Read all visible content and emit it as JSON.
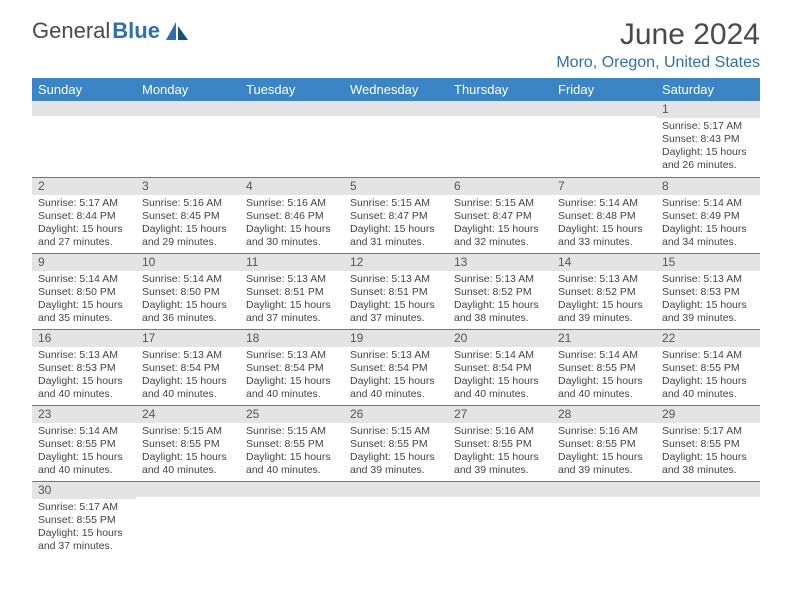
{
  "brand": {
    "part1": "General",
    "part2": "Blue"
  },
  "title": "June 2024",
  "location": "Moro, Oregon, United States",
  "colors": {
    "header_bg": "#3b85c6",
    "header_text": "#ffffff",
    "daybar_bg": "#e4e4e4",
    "cell_border": "#3b85c6",
    "brand_blue": "#2f6fb0",
    "title_color": "#4a4a4a"
  },
  "day_headers": [
    "Sunday",
    "Monday",
    "Tuesday",
    "Wednesday",
    "Thursday",
    "Friday",
    "Saturday"
  ],
  "weeks": [
    [
      {
        "n": "",
        "sr": "",
        "ss": "",
        "dl": ""
      },
      {
        "n": "",
        "sr": "",
        "ss": "",
        "dl": ""
      },
      {
        "n": "",
        "sr": "",
        "ss": "",
        "dl": ""
      },
      {
        "n": "",
        "sr": "",
        "ss": "",
        "dl": ""
      },
      {
        "n": "",
        "sr": "",
        "ss": "",
        "dl": ""
      },
      {
        "n": "",
        "sr": "",
        "ss": "",
        "dl": ""
      },
      {
        "n": "1",
        "sr": "Sunrise: 5:17 AM",
        "ss": "Sunset: 8:43 PM",
        "dl": "Daylight: 15 hours and 26 minutes."
      }
    ],
    [
      {
        "n": "2",
        "sr": "Sunrise: 5:17 AM",
        "ss": "Sunset: 8:44 PM",
        "dl": "Daylight: 15 hours and 27 minutes."
      },
      {
        "n": "3",
        "sr": "Sunrise: 5:16 AM",
        "ss": "Sunset: 8:45 PM",
        "dl": "Daylight: 15 hours and 29 minutes."
      },
      {
        "n": "4",
        "sr": "Sunrise: 5:16 AM",
        "ss": "Sunset: 8:46 PM",
        "dl": "Daylight: 15 hours and 30 minutes."
      },
      {
        "n": "5",
        "sr": "Sunrise: 5:15 AM",
        "ss": "Sunset: 8:47 PM",
        "dl": "Daylight: 15 hours and 31 minutes."
      },
      {
        "n": "6",
        "sr": "Sunrise: 5:15 AM",
        "ss": "Sunset: 8:47 PM",
        "dl": "Daylight: 15 hours and 32 minutes."
      },
      {
        "n": "7",
        "sr": "Sunrise: 5:14 AM",
        "ss": "Sunset: 8:48 PM",
        "dl": "Daylight: 15 hours and 33 minutes."
      },
      {
        "n": "8",
        "sr": "Sunrise: 5:14 AM",
        "ss": "Sunset: 8:49 PM",
        "dl": "Daylight: 15 hours and 34 minutes."
      }
    ],
    [
      {
        "n": "9",
        "sr": "Sunrise: 5:14 AM",
        "ss": "Sunset: 8:50 PM",
        "dl": "Daylight: 15 hours and 35 minutes."
      },
      {
        "n": "10",
        "sr": "Sunrise: 5:14 AM",
        "ss": "Sunset: 8:50 PM",
        "dl": "Daylight: 15 hours and 36 minutes."
      },
      {
        "n": "11",
        "sr": "Sunrise: 5:13 AM",
        "ss": "Sunset: 8:51 PM",
        "dl": "Daylight: 15 hours and 37 minutes."
      },
      {
        "n": "12",
        "sr": "Sunrise: 5:13 AM",
        "ss": "Sunset: 8:51 PM",
        "dl": "Daylight: 15 hours and 37 minutes."
      },
      {
        "n": "13",
        "sr": "Sunrise: 5:13 AM",
        "ss": "Sunset: 8:52 PM",
        "dl": "Daylight: 15 hours and 38 minutes."
      },
      {
        "n": "14",
        "sr": "Sunrise: 5:13 AM",
        "ss": "Sunset: 8:52 PM",
        "dl": "Daylight: 15 hours and 39 minutes."
      },
      {
        "n": "15",
        "sr": "Sunrise: 5:13 AM",
        "ss": "Sunset: 8:53 PM",
        "dl": "Daylight: 15 hours and 39 minutes."
      }
    ],
    [
      {
        "n": "16",
        "sr": "Sunrise: 5:13 AM",
        "ss": "Sunset: 8:53 PM",
        "dl": "Daylight: 15 hours and 40 minutes."
      },
      {
        "n": "17",
        "sr": "Sunrise: 5:13 AM",
        "ss": "Sunset: 8:54 PM",
        "dl": "Daylight: 15 hours and 40 minutes."
      },
      {
        "n": "18",
        "sr": "Sunrise: 5:13 AM",
        "ss": "Sunset: 8:54 PM",
        "dl": "Daylight: 15 hours and 40 minutes."
      },
      {
        "n": "19",
        "sr": "Sunrise: 5:13 AM",
        "ss": "Sunset: 8:54 PM",
        "dl": "Daylight: 15 hours and 40 minutes."
      },
      {
        "n": "20",
        "sr": "Sunrise: 5:14 AM",
        "ss": "Sunset: 8:54 PM",
        "dl": "Daylight: 15 hours and 40 minutes."
      },
      {
        "n": "21",
        "sr": "Sunrise: 5:14 AM",
        "ss": "Sunset: 8:55 PM",
        "dl": "Daylight: 15 hours and 40 minutes."
      },
      {
        "n": "22",
        "sr": "Sunrise: 5:14 AM",
        "ss": "Sunset: 8:55 PM",
        "dl": "Daylight: 15 hours and 40 minutes."
      }
    ],
    [
      {
        "n": "23",
        "sr": "Sunrise: 5:14 AM",
        "ss": "Sunset: 8:55 PM",
        "dl": "Daylight: 15 hours and 40 minutes."
      },
      {
        "n": "24",
        "sr": "Sunrise: 5:15 AM",
        "ss": "Sunset: 8:55 PM",
        "dl": "Daylight: 15 hours and 40 minutes."
      },
      {
        "n": "25",
        "sr": "Sunrise: 5:15 AM",
        "ss": "Sunset: 8:55 PM",
        "dl": "Daylight: 15 hours and 40 minutes."
      },
      {
        "n": "26",
        "sr": "Sunrise: 5:15 AM",
        "ss": "Sunset: 8:55 PM",
        "dl": "Daylight: 15 hours and 39 minutes."
      },
      {
        "n": "27",
        "sr": "Sunrise: 5:16 AM",
        "ss": "Sunset: 8:55 PM",
        "dl": "Daylight: 15 hours and 39 minutes."
      },
      {
        "n": "28",
        "sr": "Sunrise: 5:16 AM",
        "ss": "Sunset: 8:55 PM",
        "dl": "Daylight: 15 hours and 39 minutes."
      },
      {
        "n": "29",
        "sr": "Sunrise: 5:17 AM",
        "ss": "Sunset: 8:55 PM",
        "dl": "Daylight: 15 hours and 38 minutes."
      }
    ],
    [
      {
        "n": "30",
        "sr": "Sunrise: 5:17 AM",
        "ss": "Sunset: 8:55 PM",
        "dl": "Daylight: 15 hours and 37 minutes."
      },
      {
        "n": "",
        "sr": "",
        "ss": "",
        "dl": ""
      },
      {
        "n": "",
        "sr": "",
        "ss": "",
        "dl": ""
      },
      {
        "n": "",
        "sr": "",
        "ss": "",
        "dl": ""
      },
      {
        "n": "",
        "sr": "",
        "ss": "",
        "dl": ""
      },
      {
        "n": "",
        "sr": "",
        "ss": "",
        "dl": ""
      },
      {
        "n": "",
        "sr": "",
        "ss": "",
        "dl": ""
      }
    ]
  ]
}
